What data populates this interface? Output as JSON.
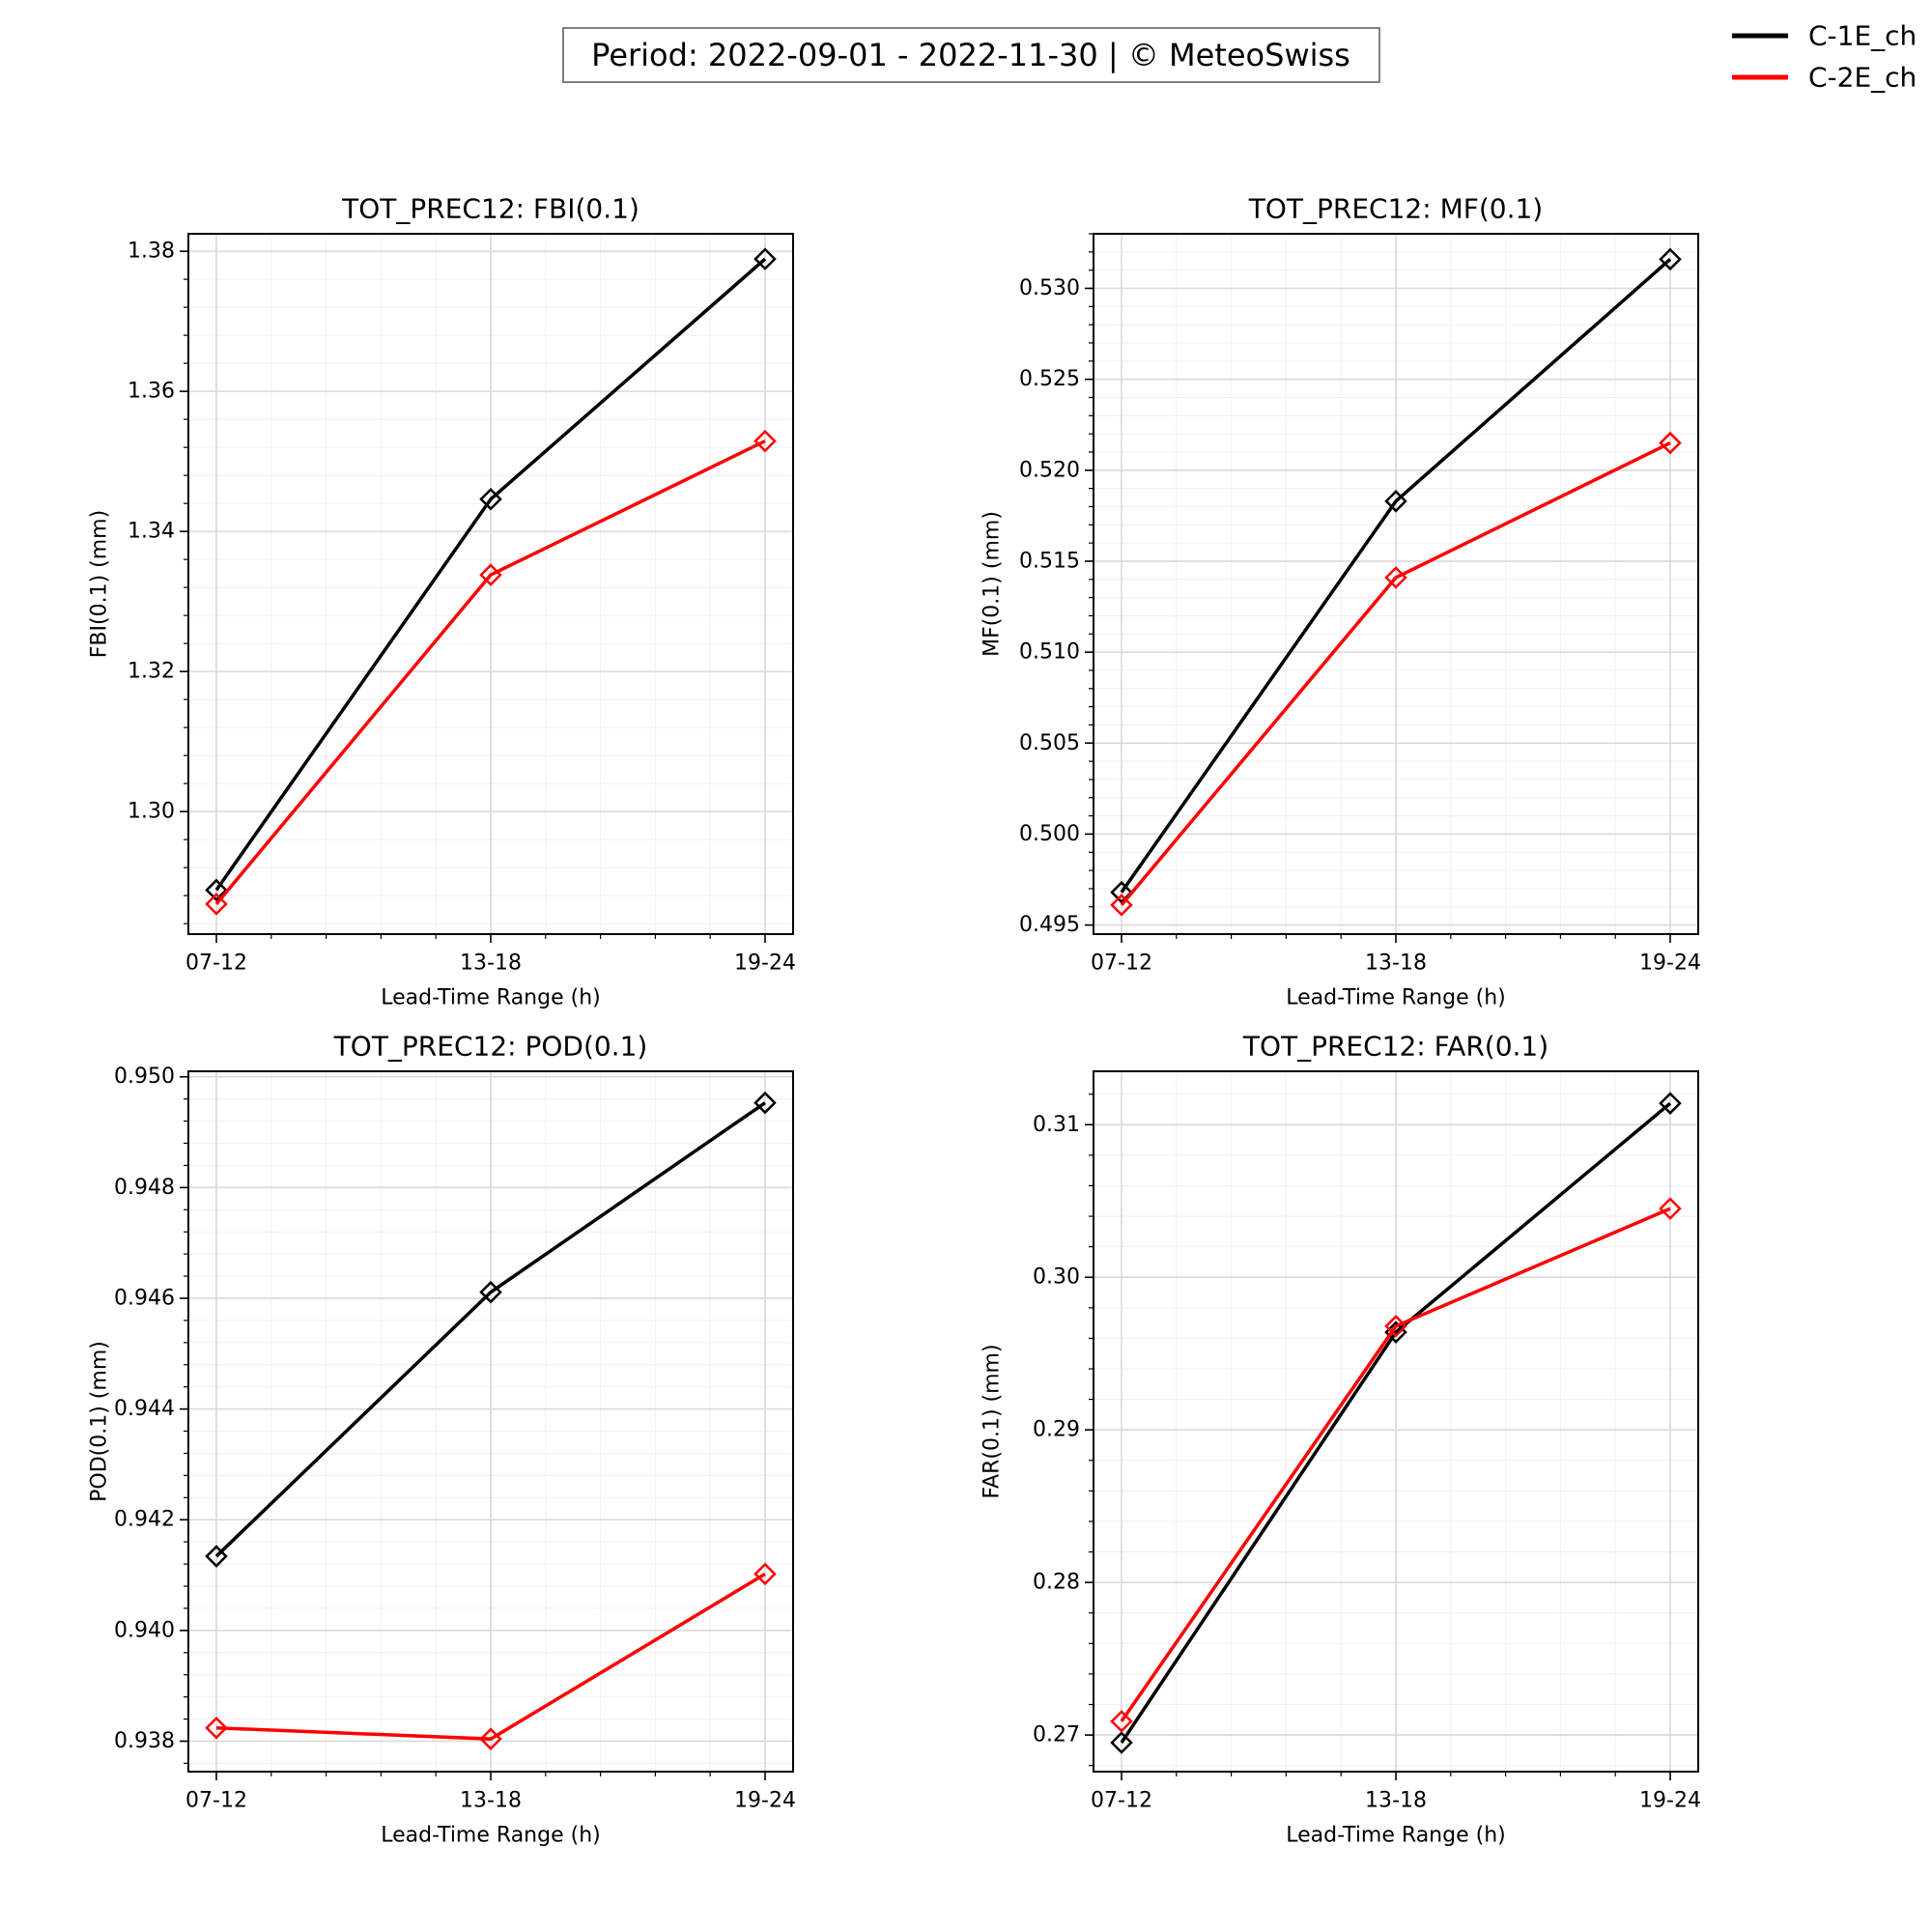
{
  "header": {
    "period_text": "Period: 2022-09-01 - 2022-11-30 | © MeteoSwiss"
  },
  "legend": {
    "placement": "top-right",
    "entries": [
      {
        "label": "C-1E_ch",
        "color": "#000000"
      },
      {
        "label": "C-2E_ch",
        "color": "#ff0000"
      }
    ]
  },
  "chart_data": [
    {
      "type": "line",
      "title": "TOT_PREC12: FBI(0.1)",
      "xlabel": "Lead-Time Range (h)",
      "ylabel": "FBI(0.1) (mm)",
      "categories": [
        "07-12",
        "13-18",
        "19-24"
      ],
      "ylim": [
        1.2825,
        1.3825
      ],
      "yticks": [
        "1.30",
        "1.32",
        "1.34",
        "1.36",
        "1.38"
      ],
      "grid": true,
      "series": [
        {
          "name": "C-1E_ch",
          "color": "#000000",
          "values": [
            1.2888,
            1.3446,
            1.3789
          ]
        },
        {
          "name": "C-2E_ch",
          "color": "#ff0000",
          "values": [
            1.2868,
            1.3338,
            1.3529
          ]
        }
      ]
    },
    {
      "type": "line",
      "title": "TOT_PREC12: MF(0.1)",
      "xlabel": "Lead-Time Range (h)",
      "ylabel": "MF(0.1) (mm)",
      "categories": [
        "07-12",
        "13-18",
        "19-24"
      ],
      "ylim": [
        0.4945,
        0.533
      ],
      "yticks": [
        "0.495",
        "0.500",
        "0.505",
        "0.510",
        "0.515",
        "0.520",
        "0.525",
        "0.530"
      ],
      "grid": true,
      "series": [
        {
          "name": "C-1E_ch",
          "color": "#000000",
          "values": [
            0.4968,
            0.5183,
            0.5316
          ]
        },
        {
          "name": "C-2E_ch",
          "color": "#ff0000",
          "values": [
            0.4961,
            0.5141,
            0.5215
          ]
        }
      ]
    },
    {
      "type": "line",
      "title": "TOT_PREC12: POD(0.1)",
      "xlabel": "Lead-Time Range (h)",
      "ylabel": "POD(0.1) (mm)",
      "categories": [
        "07-12",
        "13-18",
        "19-24"
      ],
      "ylim": [
        0.93745,
        0.9501
      ],
      "yticks": [
        "0.938",
        "0.940",
        "0.942",
        "0.944",
        "0.946",
        "0.948",
        "0.950"
      ],
      "grid": true,
      "series": [
        {
          "name": "C-1E_ch",
          "color": "#000000",
          "values": [
            0.94134,
            0.94611,
            0.94953
          ]
        },
        {
          "name": "C-2E_ch",
          "color": "#ff0000",
          "values": [
            0.93824,
            0.93804,
            0.94102
          ]
        }
      ]
    },
    {
      "type": "line",
      "title": "TOT_PREC12: FAR(0.1)",
      "xlabel": "Lead-Time Range (h)",
      "ylabel": "FAR(0.1) (mm)",
      "categories": [
        "07-12",
        "13-18",
        "19-24"
      ],
      "ylim": [
        0.2676,
        0.3135
      ],
      "yticks": [
        "0.27",
        "0.28",
        "0.29",
        "0.30",
        "0.31"
      ],
      "grid": true,
      "series": [
        {
          "name": "C-1E_ch",
          "color": "#000000",
          "values": [
            0.2695,
            0.2964,
            0.3114
          ]
        },
        {
          "name": "C-2E_ch",
          "color": "#ff0000",
          "values": [
            0.2709,
            0.2968,
            0.3045
          ]
        }
      ]
    }
  ]
}
